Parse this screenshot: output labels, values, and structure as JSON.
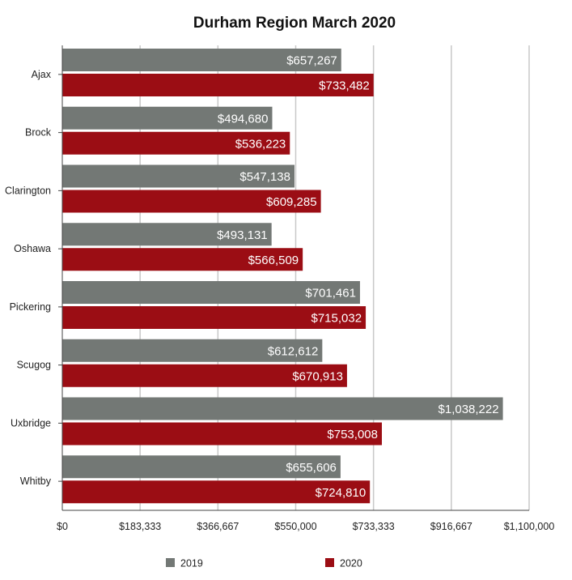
{
  "chart_data": {
    "type": "bar",
    "orientation": "horizontal",
    "title": "Durham Region March 2020",
    "xlabel": "",
    "ylabel": "",
    "categories": [
      "Ajax",
      "Brock",
      "Clarington",
      "Oshawa",
      "Pickering",
      "Scugog",
      "Uxbridge",
      "Whitby"
    ],
    "series": [
      {
        "name": "2019",
        "color": "#737875",
        "values": [
          657267,
          494680,
          547138,
          493131,
          701461,
          612612,
          1038222,
          655606
        ],
        "labels": [
          "$657,267",
          "$494,680",
          "$547,138",
          "$493,131",
          "$701,461",
          "$612,612",
          "$1,038,222",
          "$655,606"
        ]
      },
      {
        "name": "2020",
        "color": "#9b0d14",
        "values": [
          733482,
          536223,
          609285,
          566509,
          715032,
          670913,
          753008,
          724810
        ],
        "labels": [
          "$733,482",
          "$536,223",
          "$609,285",
          "$566,509",
          "$715,032",
          "$670,913",
          "$753,008",
          "$724,810"
        ]
      }
    ],
    "xlim": [
      0,
      1100000
    ],
    "xticks": [
      0,
      183333,
      366667,
      550000,
      733333,
      916667,
      1100000
    ],
    "xtick_labels": [
      "$0",
      "$183,333",
      "$366,667",
      "$550,000",
      "$733,333",
      "$916,667",
      "$1,100,000"
    ],
    "grid": true,
    "legend_position": "bottom",
    "colors": {
      "grid": "#c8c8c8",
      "axis": "#444444",
      "text": "#222222"
    }
  }
}
